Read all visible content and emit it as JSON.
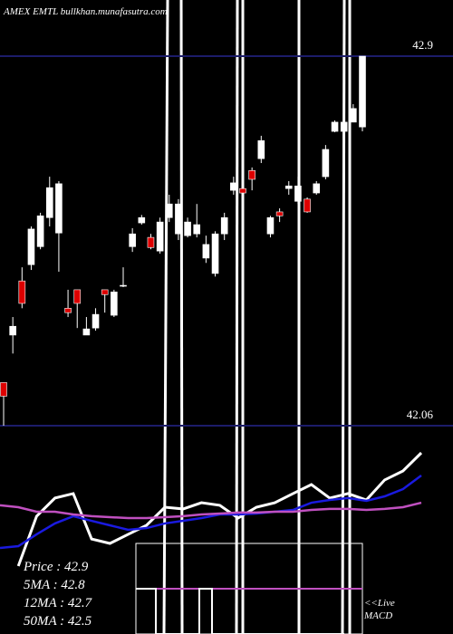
{
  "chart_data": [
    {
      "type": "candlestick",
      "title": "AMEX EMTL bullkhan.munafasutra.com",
      "ylim": [
        42.06,
        42.9
      ],
      "reference_lines": [
        42.9,
        42.06
      ],
      "up_color": "#ffffff",
      "down_color": "#dd0000",
      "reference_color": "#1c1c6a",
      "open": [
        42.158,
        42.266,
        42.389,
        42.426,
        42.467,
        42.533,
        42.498,
        42.327,
        42.369,
        42.266,
        42.282,
        42.369,
        42.311,
        42.377,
        42.467,
        42.521,
        42.488,
        42.457,
        42.533,
        42.496,
        42.492,
        42.496,
        42.441,
        42.406,
        42.496,
        42.595,
        42.599,
        42.64,
        42.667,
        42.496,
        42.546,
        42.599,
        42.57,
        42.575,
        42.589,
        42.626,
        42.729,
        42.729,
        42.75,
        42.739
      ],
      "high": [
        42.158,
        42.307,
        42.42,
        42.513,
        42.544,
        42.626,
        42.616,
        42.369,
        42.369,
        42.307,
        42.327,
        42.369,
        42.369,
        42.42,
        42.509,
        42.539,
        42.496,
        42.533,
        42.585,
        42.575,
        42.533,
        42.564,
        42.492,
        42.502,
        42.544,
        42.626,
        42.616,
        42.647,
        42.719,
        42.537,
        42.554,
        42.616,
        42.626,
        42.579,
        42.616,
        42.698,
        42.754,
        42.781,
        42.791,
        42.9
      ],
      "low": [
        42.06,
        42.224,
        42.327,
        42.414,
        42.461,
        42.513,
        42.41,
        42.307,
        42.282,
        42.266,
        42.276,
        42.317,
        42.307,
        42.375,
        42.455,
        42.517,
        42.461,
        42.451,
        42.523,
        42.482,
        42.488,
        42.488,
        42.43,
        42.399,
        42.482,
        42.585,
        42.57,
        42.595,
        42.657,
        42.488,
        42.523,
        42.585,
        42.564,
        42.544,
        42.585,
        42.62,
        42.727,
        42.729,
        42.75,
        42.729
      ],
      "close": [
        42.127,
        42.286,
        42.338,
        42.507,
        42.537,
        42.601,
        42.61,
        42.317,
        42.338,
        42.28,
        42.313,
        42.358,
        42.364,
        42.379,
        42.496,
        42.533,
        42.465,
        42.523,
        42.564,
        42.564,
        42.523,
        42.517,
        42.472,
        42.496,
        42.533,
        42.612,
        42.589,
        42.62,
        42.708,
        42.533,
        42.537,
        42.605,
        42.605,
        42.546,
        42.61,
        42.688,
        42.75,
        42.75,
        42.781,
        42.9
      ]
    },
    {
      "type": "line",
      "ylim": [
        0,
        100
      ],
      "series": [
        {
          "color": "#ffffff",
          "values": [
            null,
            9.4,
            43.8,
            56.3,
            59.4,
            28.1,
            25,
            31.3,
            37.5,
            50,
            48.8,
            53.1,
            51.3,
            42.5,
            50,
            53.1,
            59.4,
            65.6,
            56.3,
            59.4,
            55,
            68.8,
            75,
            87.5
          ]
        },
        {
          "color": "#1a1adf",
          "values": [
            21.9,
            23.1,
            31.3,
            38.8,
            43.8,
            40.6,
            37.5,
            34.4,
            35.6,
            38.8,
            40.6,
            42.5,
            45,
            45,
            45.6,
            46.9,
            48.1,
            53.1,
            55,
            56.3,
            54.4,
            57.5,
            62.5,
            71.9
          ]
        },
        {
          "color": "#c050c0",
          "values": [
            51.3,
            50,
            46.9,
            46.9,
            45,
            43.8,
            43.1,
            42.5,
            42.5,
            43.1,
            43.8,
            45,
            45.6,
            46.3,
            46.3,
            46.9,
            46.9,
            48.1,
            48.8,
            48.8,
            48.1,
            48.8,
            50,
            53.1
          ]
        }
      ],
      "legend": [
        "Price   : 42.9",
        "5MA   : 42.8",
        "12MA : 42.7",
        "50MA : 42.5"
      ],
      "macd_label": [
        "<<Live",
        "MACD"
      ]
    }
  ]
}
